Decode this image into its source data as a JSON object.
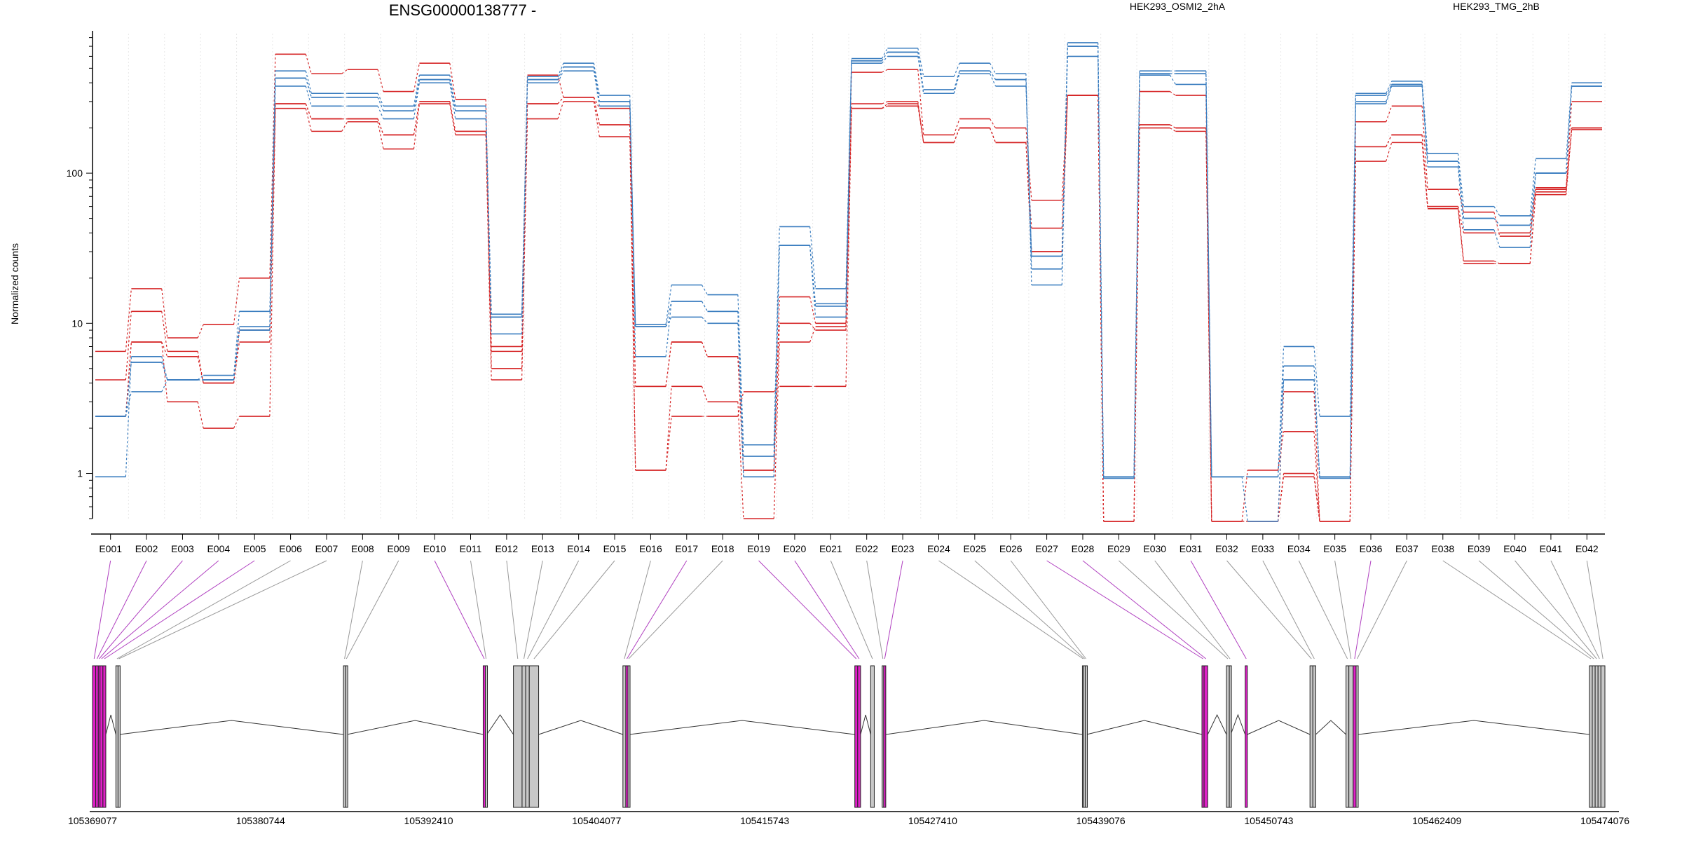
{
  "chart_data": {
    "type": "line",
    "title": "ENSG00000138777 -",
    "ylabel": "Normalized counts",
    "y_scale": "log",
    "ylim": [
      0.5,
      850
    ],
    "y_ticks": [
      {
        "value": 1,
        "label": "1"
      },
      {
        "value": 10,
        "label": "10"
      },
      {
        "value": 100,
        "label": "100"
      }
    ],
    "categories": [
      "E001",
      "E002",
      "E003",
      "E004",
      "E005",
      "E006",
      "E007",
      "E008",
      "E009",
      "E010",
      "E011",
      "E012",
      "E013",
      "E014",
      "E015",
      "E016",
      "E017",
      "E018",
      "E019",
      "E020",
      "E021",
      "E022",
      "E023",
      "E024",
      "E025",
      "E026",
      "E027",
      "E028",
      "E029",
      "E030",
      "E031",
      "E032",
      "E033",
      "E034",
      "E035",
      "E036",
      "E037",
      "E038",
      "E039",
      "E040",
      "E041",
      "E042"
    ],
    "series_groups": [
      {
        "name": "HEK293_OSMI2_2hA",
        "color": "#d62728"
      },
      {
        "name": "HEK293_TMG_2hB",
        "color": "#3a7dbf"
      }
    ],
    "series": [
      {
        "group": "HEK293_OSMI2_2hA",
        "values": [
          6.5,
          17,
          8,
          9.8,
          20,
          620,
          460,
          490,
          350,
          540,
          310,
          5,
          450,
          320,
          270,
          1.05,
          3.8,
          3,
          0.5,
          7.5,
          9.5,
          470,
          490,
          180,
          230,
          200,
          66,
          330,
          0.48,
          350,
          330,
          0.48,
          1.05,
          1.9,
          0.48,
          220,
          280,
          78,
          55,
          38,
          78,
          300
        ]
      },
      {
        "group": "HEK293_OSMI2_2hA",
        "values": [
          4.2,
          12,
          6.5,
          4,
          9,
          290,
          230,
          230,
          180,
          300,
          190,
          7,
          290,
          320,
          210,
          3.8,
          7.5,
          6,
          1.05,
          15,
          10,
          290,
          300,
          160,
          200,
          160,
          43,
          330,
          0.48,
          210,
          200,
          0.48,
          0.48,
          1,
          0.48,
          150,
          180,
          60,
          26,
          25,
          75,
          200
        ]
      },
      {
        "group": "HEK293_OSMI2_2hA",
        "values": [
          2.4,
          7.5,
          3,
          2,
          2.4,
          270,
          190,
          220,
          145,
          290,
          180,
          4.2,
          230,
          300,
          175,
          1.05,
          2.4,
          2.4,
          3.5,
          3.8,
          3.8,
          270,
          280,
          160,
          200,
          160,
          30,
          330,
          0.48,
          200,
          190,
          0.48,
          0.48,
          0.95,
          0.48,
          120,
          160,
          58,
          25,
          25,
          72,
          195
        ]
      },
      {
        "group": "HEK293_OSMI2_2hA",
        "values": [
          2.4,
          7.5,
          6,
          4,
          7.5,
          290,
          230,
          230,
          180,
          300,
          190,
          6.5,
          290,
          320,
          210,
          3.8,
          7.5,
          6,
          1.05,
          10,
          9,
          270,
          290,
          160,
          200,
          160,
          30,
          330,
          0.48,
          210,
          200,
          0.48,
          0.48,
          3.5,
          0.48,
          150,
          180,
          60,
          40,
          40,
          80,
          200
        ]
      },
      {
        "group": "HEK293_TMG_2hB",
        "values": [
          0.95,
          6,
          4.2,
          4.5,
          12,
          480,
          340,
          340,
          280,
          450,
          280,
          11.5,
          440,
          540,
          330,
          9.8,
          18,
          15.5,
          1.55,
          44,
          17,
          580,
          680,
          440,
          540,
          460,
          18,
          740,
          0.95,
          480,
          480,
          0.95,
          0.95,
          7,
          2.4,
          340,
          410,
          135,
          60,
          52,
          125,
          400
        ]
      },
      {
        "group": "HEK293_TMG_2hB",
        "values": [
          2.4,
          5.5,
          4.2,
          4.2,
          9.5,
          430,
          320,
          320,
          260,
          420,
          260,
          8.5,
          420,
          510,
          300,
          6,
          14,
          12,
          1.3,
          33,
          13.5,
          560,
          640,
          360,
          480,
          420,
          23,
          700,
          0.93,
          460,
          460,
          0.95,
          0.95,
          5.2,
          0.95,
          300,
          390,
          120,
          50,
          45,
          100,
          380
        ]
      },
      {
        "group": "HEK293_TMG_2hB",
        "values": [
          2.4,
          3.5,
          4.2,
          4.2,
          9,
          380,
          280,
          280,
          230,
          400,
          230,
          11,
          400,
          480,
          280,
          9.5,
          11,
          10,
          0.95,
          33,
          11,
          540,
          600,
          340,
          460,
          380,
          28,
          600,
          0.93,
          450,
          390,
          0.95,
          0.48,
          4.2,
          0.93,
          290,
          380,
          110,
          42,
          32,
          100,
          380
        ]
      },
      {
        "group": "HEK293_TMG_2hB",
        "values": [
          2.4,
          5.5,
          4.2,
          4.2,
          9,
          430,
          320,
          320,
          260,
          420,
          260,
          11,
          420,
          510,
          300,
          9.5,
          14,
          12,
          0.95,
          33,
          13,
          560,
          640,
          340,
          480,
          420,
          28,
          700,
          0.93,
          460,
          460,
          0.95,
          0.95,
          4.2,
          0.93,
          330,
          390,
          120,
          50,
          45,
          100,
          380
        ]
      }
    ],
    "gene_model": {
      "genomic_ticks": [
        "105369077",
        "105380744",
        "105392410",
        "105404077",
        "105415743",
        "105427410",
        "105439076",
        "105450743",
        "105462409",
        "105474076"
      ],
      "start": 105369077,
      "end": 105474076,
      "exons": [
        {
          "id": "E001",
          "start": 105369077,
          "end": 105369300,
          "highlight": true
        },
        {
          "id": "E002",
          "start": 105369300,
          "end": 105369480,
          "highlight": true
        },
        {
          "id": "E003",
          "start": 105369480,
          "end": 105369600,
          "highlight": true
        },
        {
          "id": "E004",
          "start": 105369600,
          "end": 105369800,
          "highlight": true
        },
        {
          "id": "E005",
          "start": 105369800,
          "end": 105370000,
          "highlight": true
        },
        {
          "id": "E006",
          "start": 105370700,
          "end": 105370850,
          "highlight": false
        },
        {
          "id": "E007",
          "start": 105370850,
          "end": 105370950,
          "highlight": false
        },
        {
          "id": "E008",
          "start": 105386500,
          "end": 105386650,
          "highlight": false
        },
        {
          "id": "E009",
          "start": 105386650,
          "end": 105386750,
          "highlight": false
        },
        {
          "id": "E010",
          "start": 105396200,
          "end": 105396350,
          "highlight": true
        },
        {
          "id": "E011",
          "start": 105396350,
          "end": 105396450,
          "highlight": false
        },
        {
          "id": "E012",
          "start": 105398300,
          "end": 105398900,
          "highlight": false
        },
        {
          "id": "E013",
          "start": 105398900,
          "end": 105399150,
          "highlight": false
        },
        {
          "id": "E014",
          "start": 105399150,
          "end": 105399400,
          "highlight": false
        },
        {
          "id": "E015",
          "start": 105399400,
          "end": 105400050,
          "highlight": false
        },
        {
          "id": "E016",
          "start": 105405900,
          "end": 105406100,
          "highlight": false
        },
        {
          "id": "E017",
          "start": 105406100,
          "end": 105406250,
          "highlight": true
        },
        {
          "id": "E018",
          "start": 105406250,
          "end": 105406350,
          "highlight": false
        },
        {
          "id": "E019",
          "start": 105422000,
          "end": 105422200,
          "highlight": true
        },
        {
          "id": "E020",
          "start": 105422200,
          "end": 105422400,
          "highlight": true
        },
        {
          "id": "E021",
          "start": 105423100,
          "end": 105423350,
          "highlight": false
        },
        {
          "id": "E022",
          "start": 105423900,
          "end": 105424000,
          "highlight": false
        },
        {
          "id": "E023",
          "start": 105424000,
          "end": 105424150,
          "highlight": true
        },
        {
          "id": "E024",
          "start": 105437800,
          "end": 105437900,
          "highlight": false
        },
        {
          "id": "E025",
          "start": 105437900,
          "end": 105438000,
          "highlight": false
        },
        {
          "id": "E026",
          "start": 105438000,
          "end": 105438100,
          "highlight": false
        },
        {
          "id": "E027",
          "start": 105446100,
          "end": 105446250,
          "highlight": true
        },
        {
          "id": "E028",
          "start": 105446250,
          "end": 105446500,
          "highlight": true
        },
        {
          "id": "E029",
          "start": 105447800,
          "end": 105448000,
          "highlight": false
        },
        {
          "id": "E030",
          "start": 105448000,
          "end": 105448100,
          "highlight": false
        },
        {
          "id": "E031",
          "start": 105449100,
          "end": 105449250,
          "highlight": true
        },
        {
          "id": "E032",
          "start": 105453600,
          "end": 105453800,
          "highlight": false
        },
        {
          "id": "E033",
          "start": 105453800,
          "end": 105454000,
          "highlight": false
        },
        {
          "id": "E034",
          "start": 105456100,
          "end": 105456300,
          "highlight": false
        },
        {
          "id": "E035",
          "start": 105456300,
          "end": 105456600,
          "highlight": false
        },
        {
          "id": "E036",
          "start": 105456600,
          "end": 105456800,
          "highlight": true
        },
        {
          "id": "E037",
          "start": 105456800,
          "end": 105456950,
          "highlight": false
        },
        {
          "id": "E038",
          "start": 105473000,
          "end": 105473200,
          "highlight": false
        },
        {
          "id": "E039",
          "start": 105473200,
          "end": 105473400,
          "highlight": false
        },
        {
          "id": "E040",
          "start": 105473400,
          "end": 105473600,
          "highlight": false
        },
        {
          "id": "E041",
          "start": 105473600,
          "end": 105473800,
          "highlight": false
        },
        {
          "id": "E042",
          "start": 105473800,
          "end": 105474076,
          "highlight": false
        }
      ]
    }
  }
}
